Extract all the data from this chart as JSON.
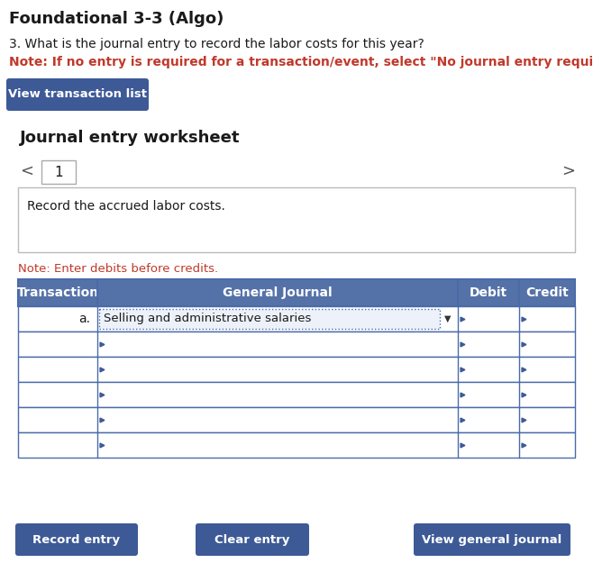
{
  "title": "Foundational 3-3 (Algo)",
  "question": "3. What is the journal entry to record the labor costs for this year?",
  "note_red": "Note: If no entry is required for a transaction/event, select \"No journal entry required\" in th",
  "btn_view_transaction": "View transaction list",
  "worksheet_title": "Journal entry worksheet",
  "tab_number": "1",
  "nav_left": "<",
  "nav_right": ">",
  "record_description": "Record the accrued labor costs.",
  "note_debits": "Note: Enter debits before credits.",
  "table_headers": [
    "Transaction",
    "General Journal",
    "Debit",
    "Credit"
  ],
  "table_row_a": "Selling and administrative salaries",
  "btn_record": "Record entry",
  "btn_clear": "Clear entry",
  "btn_view_journal": "View general journal",
  "white": "#ffffff",
  "light_gray": "#f0f0f0",
  "panel_gray": "#e8e8e8",
  "blue_dark": "#3d5a96",
  "blue_header": "#5572a8",
  "blue_btn": "#3d5a96",
  "red_text": "#c0392b",
  "black": "#1a1a1a",
  "border_blue": "#4a6baa",
  "border_light": "#aaaaaa",
  "dotted_fill": "#edf1fa"
}
